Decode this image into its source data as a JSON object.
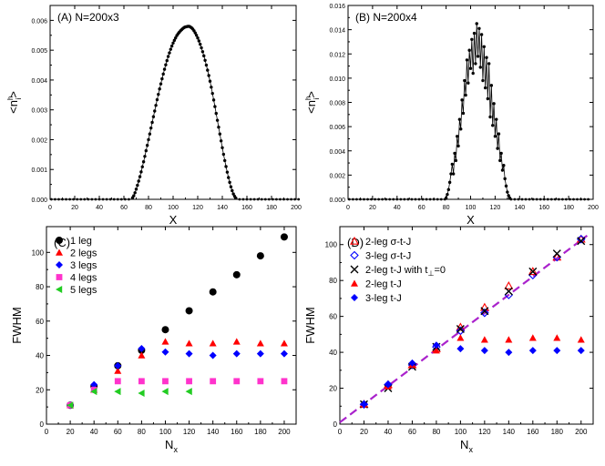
{
  "chart_data": [
    {
      "id": "A",
      "type": "scatter",
      "title": "(A) N=200x3",
      "xlabel": "X",
      "ylabel": "<n",
      "ylabel_sup": "h",
      "ylabel_sub": "i",
      "ylabel_close": ">",
      "xlim": [
        0,
        200
      ],
      "ylim": [
        0,
        0.0065
      ],
      "xticks": [
        0,
        20,
        40,
        60,
        80,
        100,
        120,
        140,
        160,
        180,
        200
      ],
      "yticks": [
        0.0,
        0.001,
        0.002,
        0.003,
        0.004,
        0.005,
        0.006
      ],
      "ytick_labels": [
        "0.000",
        "0.001",
        "0.002",
        "0.003",
        "0.004",
        "0.005",
        "0.006"
      ],
      "series": [
        {
          "style": "line-dots",
          "color": "#000000",
          "x_start": 1,
          "x_step": 1,
          "values": [
            0,
            0,
            0,
            0,
            0,
            0,
            0,
            0,
            0,
            0,
            0,
            0,
            0,
            0,
            0,
            0,
            0,
            0,
            0,
            0,
            0,
            0,
            0,
            0,
            0,
            0,
            0,
            0,
            0,
            0,
            0,
            0,
            0,
            0,
            0,
            0,
            0,
            0,
            0,
            0,
            0,
            0,
            0,
            0,
            0,
            0,
            0,
            0,
            0,
            0,
            0,
            0,
            0,
            0,
            0,
            0,
            0,
            0,
            0,
            0,
            0,
            0,
            0,
            0,
            0,
            0,
            5e-05,
            0.00012,
            0.00022,
            0.00034,
            0.00047,
            0.00061,
            0.00076,
            0.00092,
            0.00109,
            0.00126,
            0.00144,
            0.00163,
            0.00181,
            0.002,
            0.00219,
            0.00239,
            0.00258,
            0.00277,
            0.00296,
            0.00315,
            0.00334,
            0.00352,
            0.0037,
            0.00387,
            0.00404,
            0.0042,
            0.00436,
            0.00451,
            0.00465,
            0.00479,
            0.00491,
            0.00503,
            0.00514,
            0.00524,
            0.00533,
            0.00541,
            0.00549,
            0.00555,
            0.0056,
            0.00565,
            0.00569,
            0.00573,
            0.00576,
            0.00578,
            0.00579,
            0.0058,
            0.0058,
            0.00578,
            0.00575,
            0.00571,
            0.00565,
            0.00558,
            0.0055,
            0.00541,
            0.00531,
            0.0052,
            0.00508,
            0.00495,
            0.00481,
            0.00466,
            0.0045,
            0.00433,
            0.00415,
            0.00396,
            0.00376,
            0.00355,
            0.00333,
            0.00311,
            0.00288,
            0.00265,
            0.00242,
            0.00219,
            0.00196,
            0.00173,
            0.00151,
            0.0013,
            0.0011,
            0.00091,
            0.00073,
            0.00057,
            0.00042,
            0.00029,
            0.00018,
            0.0001,
            4e-05,
            0,
            0,
            0,
            0,
            0,
            0,
            0,
            0,
            0,
            0,
            0,
            0,
            0,
            0,
            0,
            0,
            0,
            0,
            0,
            0,
            0,
            0,
            0,
            0,
            0,
            0,
            0,
            0,
            0,
            0,
            0,
            0,
            0,
            0,
            0,
            0,
            0,
            0,
            0,
            0,
            0,
            0,
            0,
            0,
            0,
            0,
            0,
            0,
            0,
            0,
            0,
            0
          ]
        }
      ]
    },
    {
      "id": "B",
      "type": "scatter",
      "title": "(B) N=200x4",
      "xlabel": "X",
      "ylabel": "<n",
      "ylabel_sup": "h",
      "ylabel_sub": "i",
      "ylabel_close": ">",
      "xlim": [
        0,
        200
      ],
      "ylim": [
        0,
        0.016
      ],
      "xticks": [
        0,
        20,
        40,
        60,
        80,
        100,
        120,
        140,
        160,
        180,
        200
      ],
      "yticks": [
        0.0,
        0.002,
        0.004,
        0.006,
        0.008,
        0.01,
        0.012,
        0.014,
        0.016
      ],
      "ytick_labels": [
        "0.000",
        "0.002",
        "0.004",
        "0.006",
        "0.008",
        "0.010",
        "0.012",
        "0.014",
        "0.016"
      ],
      "series": [
        {
          "style": "line-dots",
          "color": "#000000",
          "x_start": 1,
          "x_step": 1,
          "values": [
            0,
            0,
            0,
            0,
            0,
            0,
            0,
            0,
            0,
            0,
            0,
            0,
            0,
            0,
            0,
            0,
            0,
            0,
            0,
            0,
            0,
            0,
            0,
            0,
            0,
            0,
            0,
            0,
            0,
            0,
            0,
            0,
            0,
            0,
            0,
            0,
            0,
            0,
            0,
            0,
            0,
            0,
            0,
            0,
            0,
            0,
            0,
            0,
            0,
            0,
            0,
            0,
            0,
            0,
            0,
            0,
            0,
            0,
            0,
            0,
            0,
            0,
            0,
            0,
            0,
            0,
            0,
            0,
            0,
            0,
            0,
            0,
            0,
            0,
            0,
            0,
            0,
            0,
            0,
            0.0001,
            0.0004,
            0.0008,
            0.0014,
            0.0021,
            0.0029,
            0.0021,
            0.0038,
            0.0032,
            0.0052,
            0.0044,
            0.0066,
            0.0058,
            0.0082,
            0.0071,
            0.0098,
            0.0086,
            0.0115,
            0.0096,
            0.0123,
            0.0108,
            0.0132,
            0.0104,
            0.0137,
            0.0112,
            0.0145,
            0.0118,
            0.0141,
            0.0109,
            0.0136,
            0.0098,
            0.0126,
            0.0092,
            0.0117,
            0.0083,
            0.0112,
            0.0068,
            0.0094,
            0.0061,
            0.0079,
            0.0052,
            0.0066,
            0.0042,
            0.0054,
            0.0032,
            0.0038,
            0.0024,
            0.0028,
            0.0017,
            0.0011,
            0.0006,
            0.0003,
            0.0001,
            0,
            0,
            0,
            0,
            0,
            0,
            0,
            0,
            0,
            0,
            0,
            0,
            0,
            0,
            0,
            0,
            0,
            0,
            0,
            0,
            0,
            0,
            0,
            0,
            0,
            0,
            0,
            0,
            0,
            0,
            0,
            0,
            0,
            0,
            0,
            0,
            0,
            0,
            0,
            0,
            0,
            0,
            0,
            0,
            0,
            0,
            0,
            0,
            0,
            0,
            0,
            0,
            0,
            0,
            0,
            0,
            0,
            0,
            0,
            0,
            0,
            0,
            0,
            0,
            0
          ]
        }
      ]
    },
    {
      "id": "C",
      "type": "scatter",
      "title": "(C)",
      "xlabel": "N",
      "xlabel_sub": "x",
      "ylabel": "FWHM",
      "xlim": [
        0,
        210
      ],
      "ylim": [
        0,
        115
      ],
      "xticks": [
        0,
        20,
        40,
        60,
        80,
        100,
        120,
        140,
        160,
        180,
        200
      ],
      "yticks": [
        0,
        20,
        40,
        60,
        80,
        100
      ],
      "ytick_labels": [
        "0",
        "20",
        "40",
        "60",
        "80",
        "100"
      ],
      "legend": "top-left",
      "series": [
        {
          "name": "1 leg",
          "marker": "circle",
          "color": "#000000",
          "x": [
            20,
            40,
            60,
            80,
            100,
            120,
            140,
            160,
            180,
            200
          ],
          "values": [
            11,
            22,
            34,
            43,
            55,
            66,
            77,
            87,
            98,
            109
          ]
        },
        {
          "name": "2 legs",
          "marker": "triangle",
          "color": "#ff0000",
          "x": [
            20,
            40,
            60,
            80,
            100,
            120,
            140,
            160,
            180,
            200
          ],
          "values": [
            11,
            20,
            31,
            40,
            48,
            47,
            47,
            48,
            47,
            47
          ]
        },
        {
          "name": "3 legs",
          "marker": "diamond",
          "color": "#0000ff",
          "x": [
            20,
            40,
            60,
            80,
            100,
            120,
            140,
            160,
            180,
            200
          ],
          "values": [
            11,
            23,
            34,
            44,
            42,
            41,
            40,
            41,
            41,
            41
          ]
        },
        {
          "name": "4 legs",
          "marker": "square",
          "color": "#ff33cc",
          "x": [
            20,
            40,
            60,
            80,
            100,
            120,
            140,
            160,
            180,
            200
          ],
          "values": [
            11,
            20,
            25,
            25,
            25,
            25,
            25,
            25,
            25,
            25
          ]
        },
        {
          "name": "5 legs",
          "marker": "triangle-left",
          "color": "#22cc22",
          "x": [
            20,
            40,
            60,
            80,
            100,
            120
          ],
          "values": [
            11,
            19,
            19,
            18,
            19,
            19
          ]
        }
      ]
    },
    {
      "id": "D",
      "type": "scatter",
      "title": "(D)",
      "xlabel": "N",
      "xlabel_sub": "x",
      "ylabel": "FWHM",
      "xlim": [
        0,
        210
      ],
      "ylim": [
        0,
        110
      ],
      "xticks": [
        0,
        20,
        40,
        60,
        80,
        100,
        120,
        140,
        160,
        180,
        200
      ],
      "yticks": [
        0,
        20,
        40,
        60,
        80,
        100
      ],
      "ytick_labels": [
        "0",
        "20",
        "40",
        "60",
        "80",
        "100"
      ],
      "legend": "top-left",
      "fit_line": {
        "color": "#aa22cc",
        "x": [
          0,
          205
        ],
        "y": [
          1,
          105
        ]
      },
      "series": [
        {
          "name": "2-leg σ-t-J",
          "marker": "triangle-open",
          "color": "#ff0000",
          "x": [
            20,
            40,
            60,
            80,
            100,
            120,
            140,
            160,
            180,
            200
          ],
          "values": [
            11,
            22,
            33,
            42,
            54,
            65,
            77,
            85,
            93,
            103
          ]
        },
        {
          "name": "3-leg σ-t-J",
          "marker": "diamond-open",
          "color": "#0000ff",
          "x": [
            20,
            40,
            60,
            80,
            100,
            120,
            140,
            160,
            180,
            200
          ],
          "values": [
            11,
            22,
            33,
            43,
            52,
            62,
            72,
            83,
            93,
            103
          ]
        },
        {
          "name": "2-leg t-J with t",
          "name_sub": "⊥",
          "name_tail": "=0",
          "marker": "x",
          "color": "#000000",
          "x": [
            20,
            40,
            60,
            80,
            100,
            120,
            140,
            160,
            180,
            200
          ],
          "values": [
            11,
            20,
            32,
            43,
            53,
            63,
            74,
            85,
            95,
            102
          ]
        },
        {
          "name": "2-leg t-J",
          "marker": "triangle",
          "color": "#ff0000",
          "x": [
            20,
            40,
            60,
            80,
            100,
            120,
            140,
            160,
            180,
            200
          ],
          "values": [
            11,
            21,
            33,
            41,
            48,
            47,
            47,
            48,
            48,
            47
          ]
        },
        {
          "name": "3-leg t-J",
          "marker": "diamond",
          "color": "#0000ff",
          "x": [
            20,
            40,
            60,
            80,
            100,
            120,
            140,
            160,
            180,
            200
          ],
          "values": [
            11,
            22,
            34,
            44,
            42,
            41,
            40,
            41,
            41,
            41
          ]
        }
      ]
    }
  ]
}
